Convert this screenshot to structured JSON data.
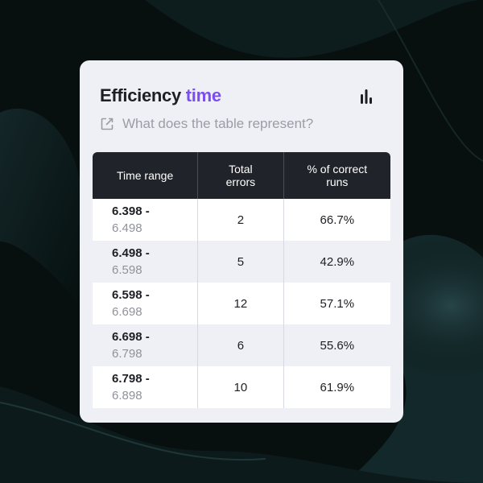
{
  "header": {
    "title_main": "Efficiency",
    "title_accent": "time",
    "chart_icon": "bar-chart-icon",
    "question": "What does the table represent?",
    "question_icon": "external-link-icon"
  },
  "table": {
    "headers": [
      "Time range",
      "Total errors",
      "% of correct runs"
    ],
    "rows": [
      {
        "range_start": "6.398 -",
        "range_end": "6.498",
        "errors": "2",
        "correct": "66.7%"
      },
      {
        "range_start": "6.498 -",
        "range_end": "6.598",
        "errors": "5",
        "correct": "42.9%"
      },
      {
        "range_start": "6.598 -",
        "range_end": "6.698",
        "errors": "12",
        "correct": "57.1%"
      },
      {
        "range_start": "6.698 -",
        "range_end": "6.798",
        "errors": "6",
        "correct": "55.6%"
      },
      {
        "range_start": "6.798 -",
        "range_end": "6.898",
        "errors": "10",
        "correct": "61.9%"
      }
    ]
  },
  "colors": {
    "accent": "#7c4ef1",
    "header_bg": "#202329",
    "card_bg": "#eef0f5",
    "page_bg": "#07100f"
  }
}
